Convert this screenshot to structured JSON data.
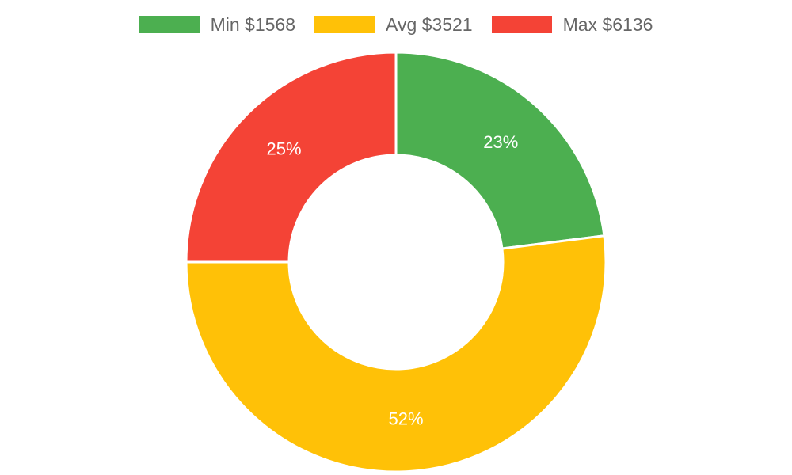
{
  "chart_data": {
    "type": "pie",
    "variant": "doughnut",
    "legend_position": "top",
    "categories": [
      "Min $1568",
      "Avg $3521",
      "Max $6136"
    ],
    "values": [
      23,
      52,
      25
    ],
    "data_labels": [
      "23%",
      "52%",
      "25%"
    ],
    "colors": [
      "#4caf50",
      "#ffc107",
      "#f44336"
    ],
    "title": ""
  }
}
